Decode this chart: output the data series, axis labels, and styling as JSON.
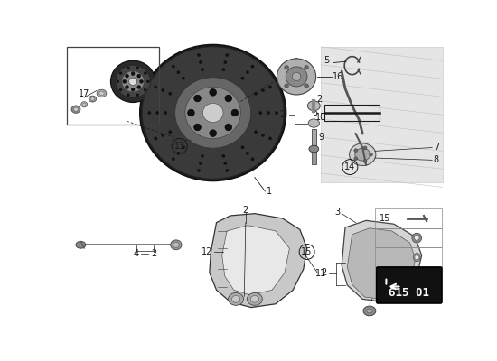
{
  "bg_color": "#ffffff",
  "part_number_box": "615 01",
  "line_color": "#1a1a1a",
  "disc_color": "#2a2a2a",
  "disc_inner_color": "#888888",
  "disc_face_color": "#444444",
  "hub_color": "#c0c0c0",
  "caliper_color": "#c8c8c8",
  "pad_color": "#d0d0d0",
  "photo_bg": "#e8e8e8",
  "label_fs": 7,
  "small_fs": 6.5
}
